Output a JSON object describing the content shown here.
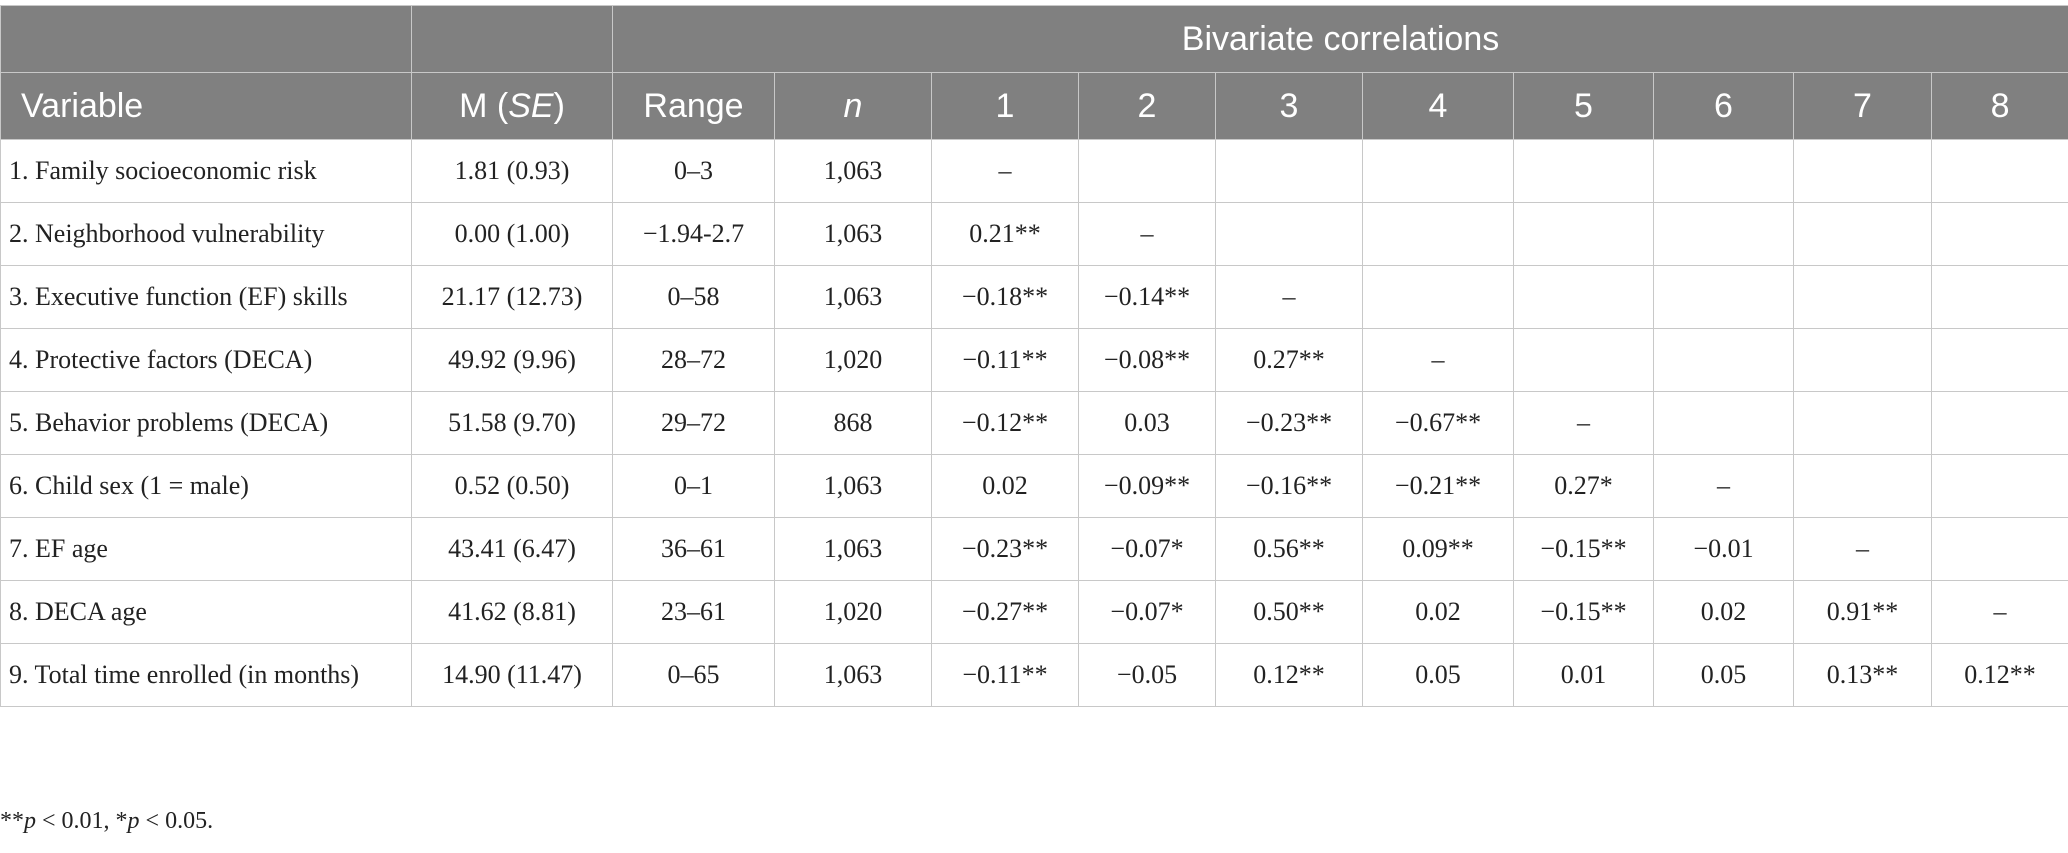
{
  "header": {
    "group_title": "Bivariate correlations",
    "columns": {
      "variable": "Variable",
      "m_se": [
        "M (",
        "SE",
        ")"
      ],
      "range": "Range",
      "n": "n",
      "numbers": [
        1,
        2,
        3,
        4,
        5,
        6,
        7,
        8
      ]
    }
  },
  "rows": [
    {
      "variable": "1. Family socioeconomic risk",
      "m_se": "1.81 (0.93)",
      "range": "0–3",
      "n": "1,063",
      "correlations": [
        "–"
      ]
    },
    {
      "variable": "2. Neighborhood vulnerability",
      "m_se": "0.00 (1.00)",
      "range": "−1.94-2.7",
      "n": "1,063",
      "correlations": [
        "0.21**",
        "–"
      ]
    },
    {
      "variable": "3. Executive function (EF) skills",
      "m_se": "21.17 (12.73)",
      "range": "0–58",
      "n": "1,063",
      "correlations": [
        "−0.18**",
        "−0.14**",
        "–"
      ]
    },
    {
      "variable": "4. Protective factors (DECA)",
      "m_se": "49.92 (9.96)",
      "range": "28–72",
      "n": "1,020",
      "correlations": [
        "−0.11**",
        "−0.08**",
        "0.27**",
        "–"
      ]
    },
    {
      "variable": "5. Behavior problems (DECA)",
      "m_se": "51.58 (9.70)",
      "range": "29–72",
      "n": "868",
      "correlations": [
        "−0.12**",
        "0.03",
        "−0.23**",
        "−0.67**",
        "–"
      ]
    },
    {
      "variable": "6. Child sex (1 = male)",
      "m_se": "0.52 (0.50)",
      "range": "0–1",
      "n": "1,063",
      "correlations": [
        "0.02",
        "−0.09**",
        "−0.16**",
        "−0.21**",
        "0.27*",
        "–"
      ]
    },
    {
      "variable": "7. EF age",
      "m_se": "43.41 (6.47)",
      "range": "36–61",
      "n": "1,063",
      "correlations": [
        "−0.23**",
        "−0.07*",
        "0.56**",
        "0.09**",
        "−0.15**",
        "−0.01",
        "–"
      ]
    },
    {
      "variable": "8. DECA age",
      "m_se": "41.62 (8.81)",
      "range": "23–61",
      "n": "1,020",
      "correlations": [
        "−0.27**",
        "−0.07*",
        "0.50**",
        "0.02",
        "−0.15**",
        "0.02",
        "0.91**",
        "–"
      ]
    },
    {
      "variable": "9. Total time enrolled (in months)",
      "m_se": "14.90 (11.47)",
      "range": "0–65",
      "n": "1,063",
      "correlations": [
        "−0.11**",
        "−0.05",
        "0.12**",
        "0.05",
        "0.01",
        "0.05",
        "0.13**",
        "0.12**"
      ]
    }
  ],
  "footnote": [
    "**",
    "p",
    " < 0.01, *",
    "p",
    " < 0.05."
  ]
}
